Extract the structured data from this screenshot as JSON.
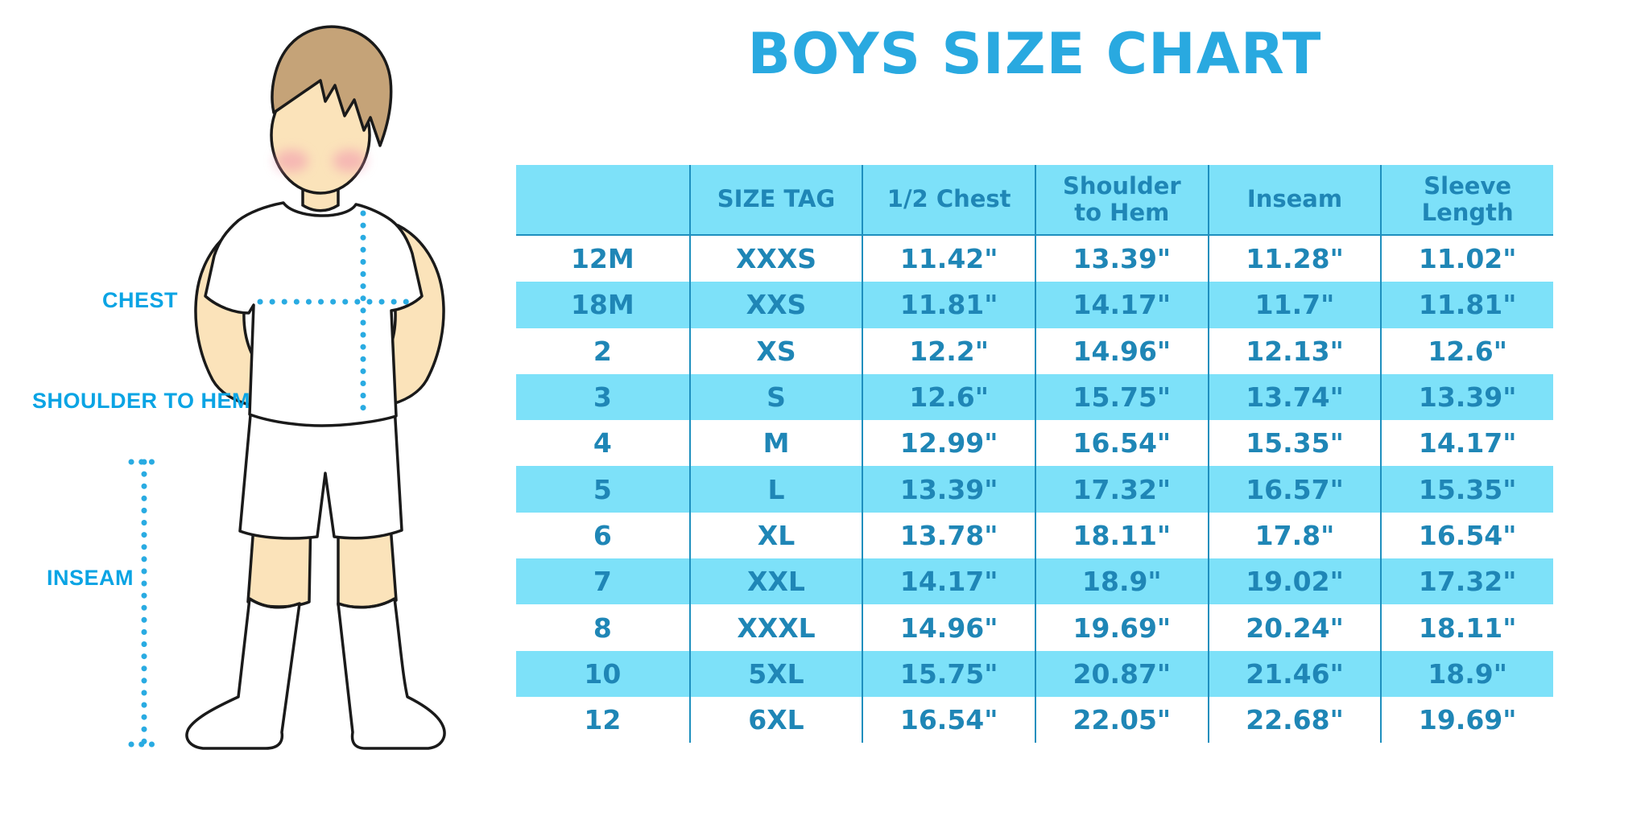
{
  "title": "BOYS SIZE CHART",
  "diagram_labels": {
    "chest": "CHEST",
    "shoulder_to_hem": "SHOULDER TO HEM",
    "inseam": "INSEAM"
  },
  "colors": {
    "accent": "#29A9E0",
    "label": "#0AA4E4",
    "stripe": "#7DE1F9",
    "ttext": "#1F86B6",
    "tborder": "#1E8FBE",
    "dotted": "#29ABE2",
    "skin": "#FBE3BA",
    "hair": "#C5A378",
    "blush": "#F194AE",
    "outline": "#1A1A1A"
  },
  "chart_data": {
    "type": "table",
    "title": "BOYS SIZE CHART",
    "columns": [
      "",
      "SIZE TAG",
      "1/2 Chest",
      "Shoulder to Hem",
      "Inseam",
      "Sleeve Length"
    ],
    "rows": [
      [
        "12M",
        "XXXS",
        "11.42\"",
        "13.39\"",
        "11.28\"",
        "11.02\""
      ],
      [
        "18M",
        "XXS",
        "11.81\"",
        "14.17\"",
        "11.7\"",
        "11.81\""
      ],
      [
        "2",
        "XS",
        "12.2\"",
        "14.96\"",
        "12.13\"",
        "12.6\""
      ],
      [
        "3",
        "S",
        "12.6\"",
        "15.75\"",
        "13.74\"",
        "13.39\""
      ],
      [
        "4",
        "M",
        "12.99\"",
        "16.54\"",
        "15.35\"",
        "14.17\""
      ],
      [
        "5",
        "L",
        "13.39\"",
        "17.32\"",
        "16.57\"",
        "15.35\""
      ],
      [
        "6",
        "XL",
        "13.78\"",
        "18.11\"",
        "17.8\"",
        "16.54\""
      ],
      [
        "7",
        "XXL",
        "14.17\"",
        "18.9\"",
        "19.02\"",
        "17.32\""
      ],
      [
        "8",
        "XXXL",
        "14.96\"",
        "19.69\"",
        "20.24\"",
        "18.11\""
      ],
      [
        "10",
        "5XL",
        "15.75\"",
        "20.87\"",
        "21.46\"",
        "18.9\""
      ],
      [
        "12",
        "6XL",
        "16.54\"",
        "22.05\"",
        "22.68\"",
        "19.69\""
      ]
    ],
    "units": "inches",
    "row_striping": "alternating white / light-cyan starting white",
    "legend_position": "none",
    "grid": "vertical column dividers only"
  }
}
